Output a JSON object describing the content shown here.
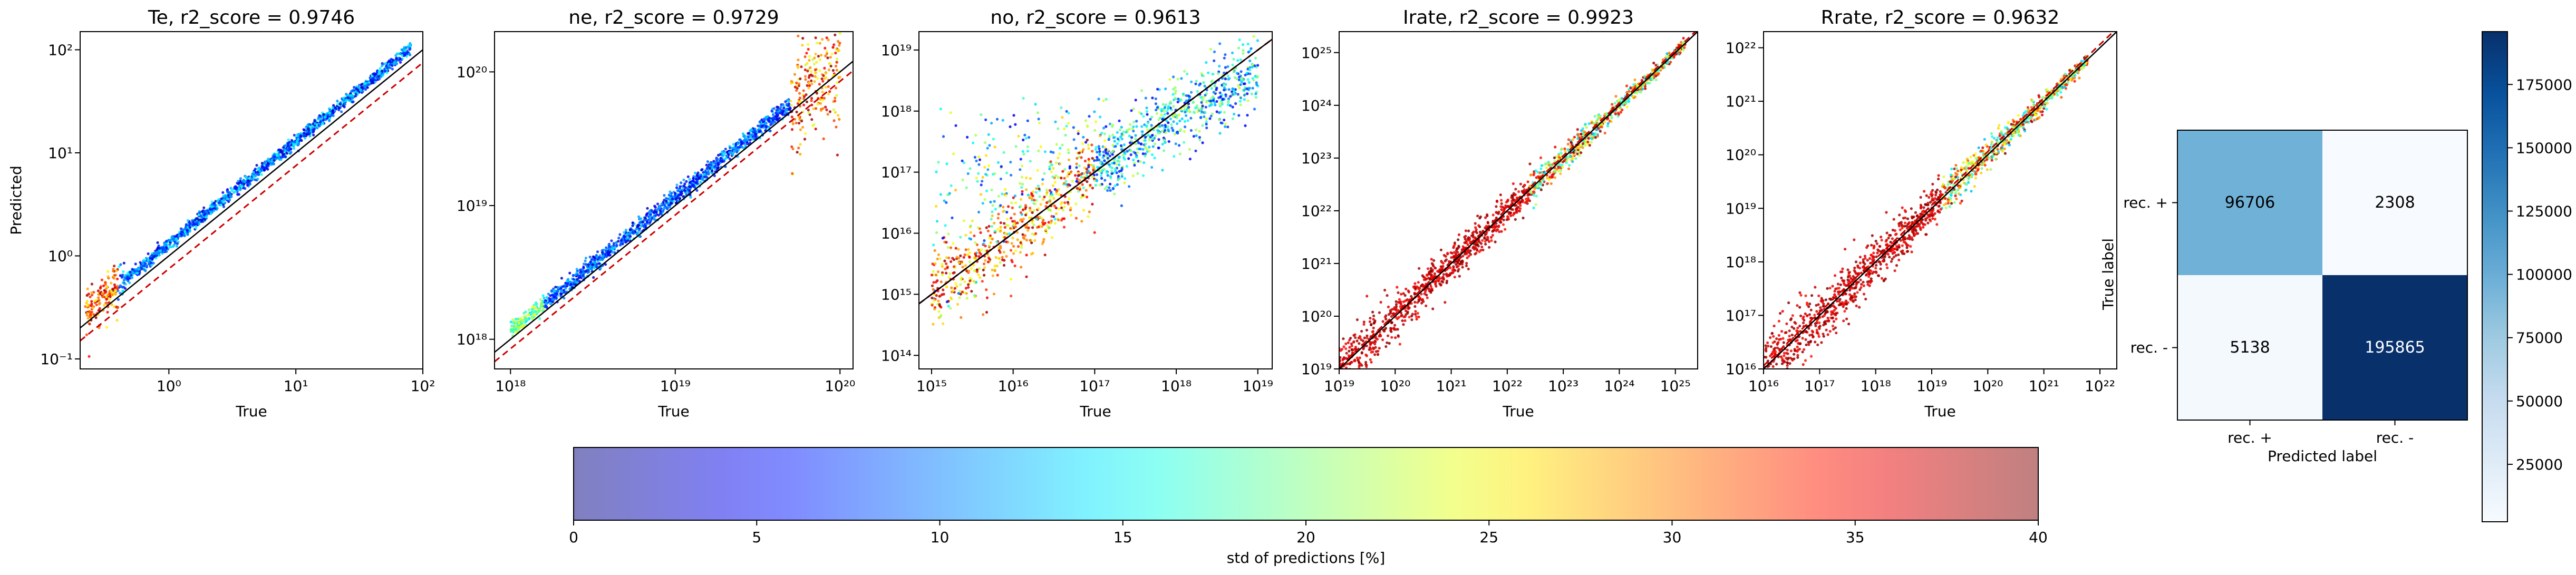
{
  "colors": {
    "identity_line": "#000000",
    "fit_line": "#cc0000",
    "frame": "#000000"
  },
  "chart_data": [
    {
      "type": "scatter",
      "title": "Te, r2_score = 0.9746",
      "xlabel": "True",
      "ylabel": "Predicted",
      "xscale": "log",
      "yscale": "log",
      "xlim": [
        0.2,
        100
      ],
      "ylim": [
        0.08,
        150
      ],
      "xticks": [
        {
          "v": 1,
          "label": "10⁰"
        },
        {
          "v": 10,
          "label": "10¹"
        },
        {
          "v": 100,
          "label": "10²"
        }
      ],
      "yticks": [
        {
          "v": 0.1,
          "label": "10⁻¹"
        },
        {
          "v": 1,
          "label": "10⁰"
        },
        {
          "v": 10,
          "label": "10¹"
        },
        {
          "v": 100,
          "label": "10²"
        }
      ],
      "data_range": [
        0.22,
        80
      ],
      "bias": 1.3,
      "spread_dex": 0.03,
      "lowx_extra_spread": 0.08,
      "fit_factor": 0.75,
      "color_profile": "low-warm"
    },
    {
      "type": "scatter",
      "title": "ne, r2_score = 0.9729",
      "xlabel": "True",
      "ylabel": "",
      "xscale": "log",
      "yscale": "log",
      "xlim": [
        8e+17,
        1.2e+20
      ],
      "ylim": [
        6e+17,
        2e+20
      ],
      "xticks": [
        {
          "v": 1e+18,
          "label": "10¹⁸"
        },
        {
          "v": 1e+19,
          "label": "10¹⁹"
        },
        {
          "v": 1e+20,
          "label": "10²⁰"
        }
      ],
      "yticks": [
        {
          "v": 1e+18,
          "label": "10¹⁸"
        },
        {
          "v": 1e+19,
          "label": "10¹⁹"
        },
        {
          "v": 1e+20,
          "label": "10²⁰"
        }
      ],
      "data_range": [
        1e+18,
        1e+20
      ],
      "bias": 1.15,
      "spread_dex": 0.03,
      "highx_spread": 0.2,
      "fit_factor": 0.85,
      "color_profile": "high-warm"
    },
    {
      "type": "scatter",
      "title": "no, r2_score = 0.9613",
      "xlabel": "True",
      "ylabel": "",
      "xscale": "log",
      "yscale": "log",
      "xlim": [
        700000000000000.0,
        1.5e+19
      ],
      "ylim": [
        60000000000000.0,
        2e+19
      ],
      "xticks": [
        {
          "v": 1000000000000000.0,
          "label": "10¹⁵"
        },
        {
          "v": 1e+16,
          "label": "10¹⁶"
        },
        {
          "v": 1e+17,
          "label": "10¹⁷"
        },
        {
          "v": 1e+18,
          "label": "10¹⁸"
        },
        {
          "v": 1e+19,
          "label": "10¹⁹"
        }
      ],
      "yticks": [
        {
          "v": 100000000000000.0,
          "label": "10¹⁴"
        },
        {
          "v": 1000000000000000.0,
          "label": "10¹⁵"
        },
        {
          "v": 1e+16,
          "label": "10¹⁶"
        },
        {
          "v": 1e+17,
          "label": "10¹⁷"
        },
        {
          "v": 1e+18,
          "label": "10¹⁸"
        },
        {
          "v": 1e+19,
          "label": "10¹⁹"
        }
      ],
      "data_range": [
        1000000000000000.0,
        1e+19
      ],
      "bias": 1.0,
      "spread_dex": 0.3,
      "plateau": 7e+17,
      "fit_factor": 1.0,
      "color_profile": "mixed"
    },
    {
      "type": "scatter",
      "title": "Irate, r2_score = 0.9923",
      "xlabel": "True",
      "ylabel": "",
      "xscale": "log",
      "yscale": "log",
      "xlim": [
        1e+19,
        2.5e+25
      ],
      "ylim": [
        1e+19,
        2.5e+25
      ],
      "xticks": [
        {
          "v": 1e+19,
          "label": "10¹⁹"
        },
        {
          "v": 1e+20,
          "label": "10²⁰"
        },
        {
          "v": 1e+21,
          "label": "10²¹"
        },
        {
          "v": 1e+22,
          "label": "10²²"
        },
        {
          "v": 1e+23,
          "label": "10²³"
        },
        {
          "v": 1e+24,
          "label": "10²⁴"
        },
        {
          "v": 1e+25,
          "label": "10²⁵"
        }
      ],
      "yticks": [
        {
          "v": 1e+19,
          "label": "10¹⁹"
        },
        {
          "v": 1e+20,
          "label": "10²⁰"
        },
        {
          "v": 1e+21,
          "label": "10²¹"
        },
        {
          "v": 1e+22,
          "label": "10²²"
        },
        {
          "v": 1e+23,
          "label": "10²³"
        },
        {
          "v": 1e+24,
          "label": "10²⁴"
        },
        {
          "v": 1e+25,
          "label": "10²⁵"
        }
      ],
      "data_range": [
        1e+19,
        1.5e+25
      ],
      "bias": 1.0,
      "spread_dex": 0.25,
      "fit_factor": 1.1,
      "color_profile": "red-low"
    },
    {
      "type": "scatter",
      "title": "Rrate, r2_score = 0.9632",
      "xlabel": "True",
      "ylabel": "",
      "xscale": "log",
      "yscale": "log",
      "xlim": [
        1e+16,
        2e+22
      ],
      "ylim": [
        1e+16,
        2e+22
      ],
      "xticks": [
        {
          "v": 1e+16,
          "label": "10¹⁶"
        },
        {
          "v": 1e+17,
          "label": "10¹⁷"
        },
        {
          "v": 1e+18,
          "label": "10¹⁸"
        },
        {
          "v": 1e+19,
          "label": "10¹⁹"
        },
        {
          "v": 1e+20,
          "label": "10²⁰"
        },
        {
          "v": 1e+21,
          "label": "10²¹"
        },
        {
          "v": 1e+22,
          "label": "10²²"
        }
      ],
      "yticks": [
        {
          "v": 1e+16,
          "label": "10¹⁶"
        },
        {
          "v": 1e+17,
          "label": "10¹⁷"
        },
        {
          "v": 1e+18,
          "label": "10¹⁸"
        },
        {
          "v": 1e+19,
          "label": "10¹⁹"
        },
        {
          "v": 1e+20,
          "label": "10²⁰"
        },
        {
          "v": 1e+21,
          "label": "10²¹"
        },
        {
          "v": 1e+22,
          "label": "10²²"
        }
      ],
      "data_range": [
        1e+16,
        6e+21
      ],
      "bias": 1.0,
      "spread_dex": 0.3,
      "fit_factor": 1.15,
      "color_profile": "red-low"
    },
    {
      "type": "heatmap",
      "title": "",
      "xlabel": "Predicted label",
      "ylabel": "True label",
      "x_categories": [
        "rec. +",
        "rec. -"
      ],
      "y_categories": [
        "rec. +",
        "rec. -"
      ],
      "matrix": [
        [
          96706,
          2308
        ],
        [
          5138,
          195865
        ]
      ],
      "matrix_labels": [
        [
          "96706",
          "2308"
        ],
        [
          "5138",
          "195865"
        ]
      ],
      "colormap": "Blues",
      "colorbar_range": [
        2308,
        195865
      ],
      "colorbar_ticks": [
        "25000",
        "50000",
        "75000",
        "100000",
        "125000",
        "150000",
        "175000"
      ],
      "colorbar_tick_values": [
        25000,
        50000,
        75000,
        100000,
        125000,
        150000,
        175000
      ]
    },
    {
      "type": "colorbar",
      "label": "std of predictions [%]",
      "range": [
        0,
        40
      ],
      "ticks": [
        "0",
        "5",
        "10",
        "15",
        "20",
        "25",
        "30",
        "35",
        "40"
      ],
      "tick_values": [
        0,
        5,
        10,
        15,
        20,
        25,
        30,
        35,
        40
      ],
      "colormap": "jet",
      "alpha": 0.5
    }
  ]
}
